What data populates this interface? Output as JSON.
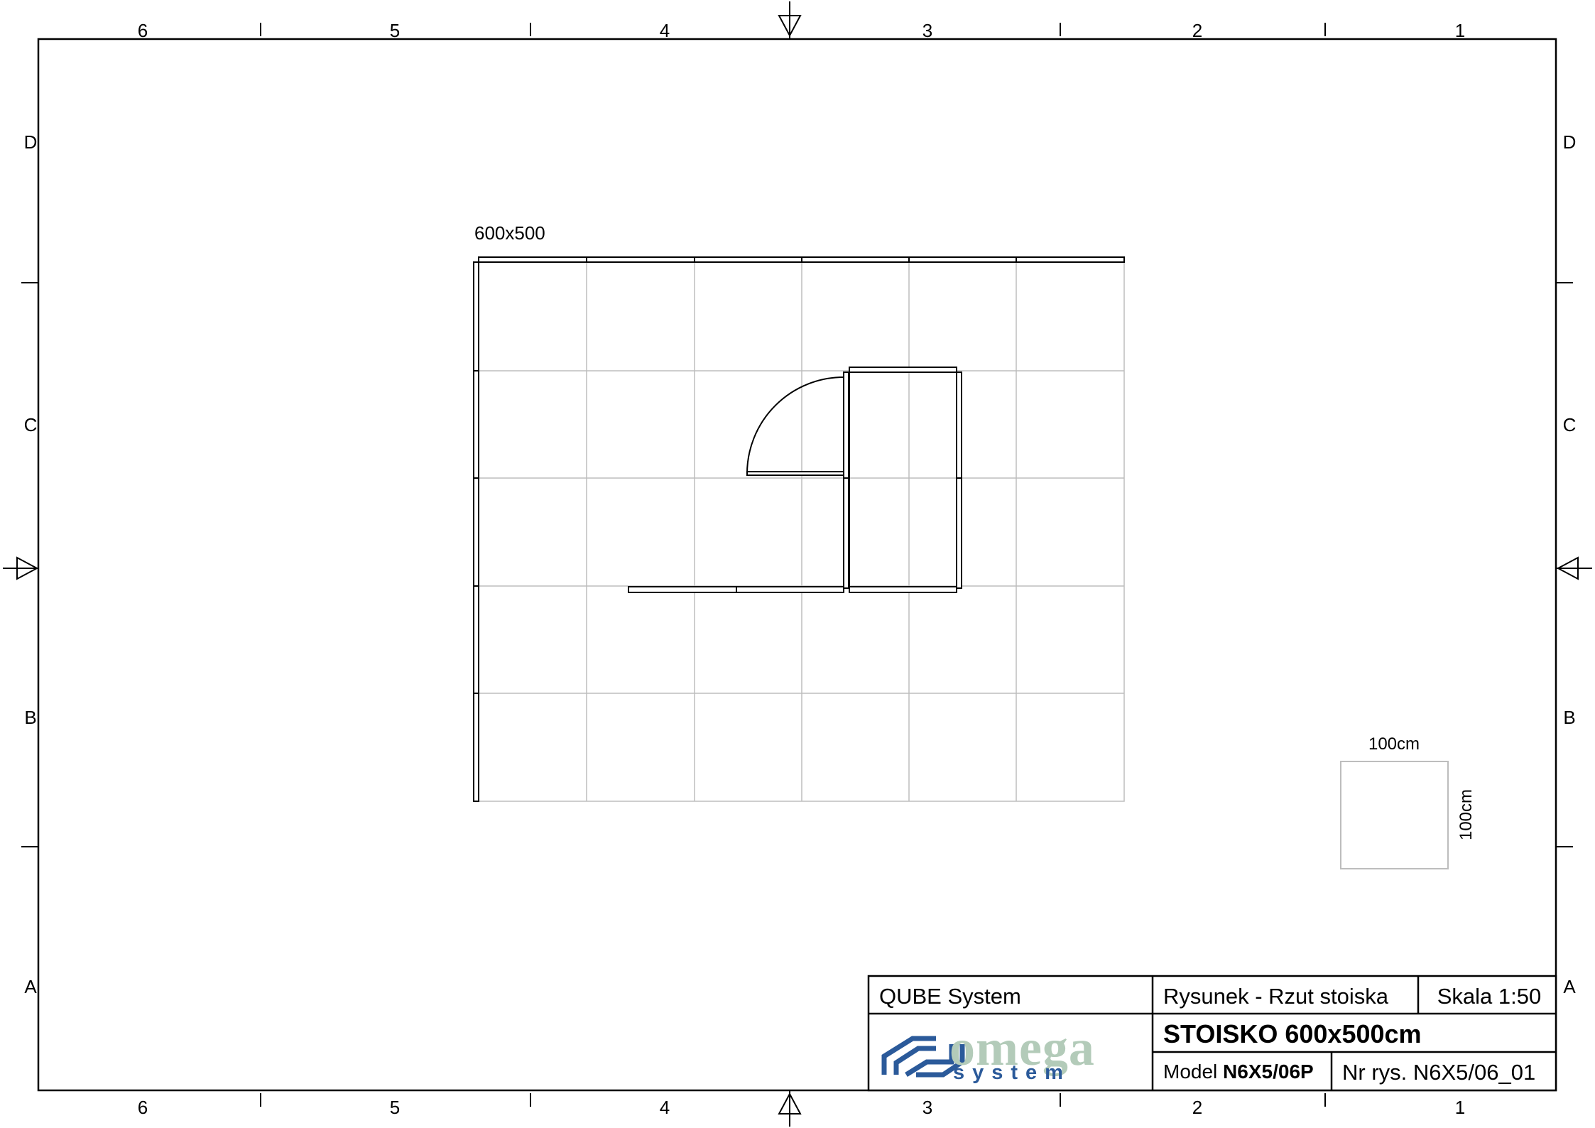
{
  "frame": {
    "columns_top": [
      "6",
      "5",
      "4",
      "3",
      "2",
      "1"
    ],
    "columns_bottom": [
      "6",
      "5",
      "4",
      "3",
      "2",
      "1"
    ],
    "rows_left": [
      "D",
      "C",
      "B",
      "A"
    ],
    "rows_right": [
      "D",
      "C",
      "B",
      "A"
    ]
  },
  "plan": {
    "size_label": "600x500",
    "grid_cols": 6,
    "grid_rows": 5
  },
  "scale_ref": {
    "width_label": "100cm",
    "height_label": "100cm"
  },
  "title_block": {
    "system": "QUBE System",
    "drawing_type": "Rysunek - Rzut stoiska",
    "scale": "Skala 1:50",
    "title": "STOISKO 600x500cm",
    "model_prefix": "Model ",
    "model_code": "N6X5/06P",
    "drawing_number": "Nr rys. N6X5/06_01",
    "logo_top": "omega",
    "logo_bottom": "system"
  },
  "colors": {
    "line": "#000000",
    "grid": "#bdbdbd",
    "logo_blue": "#2b5a9a",
    "logo_green": "#b3cbb9"
  }
}
